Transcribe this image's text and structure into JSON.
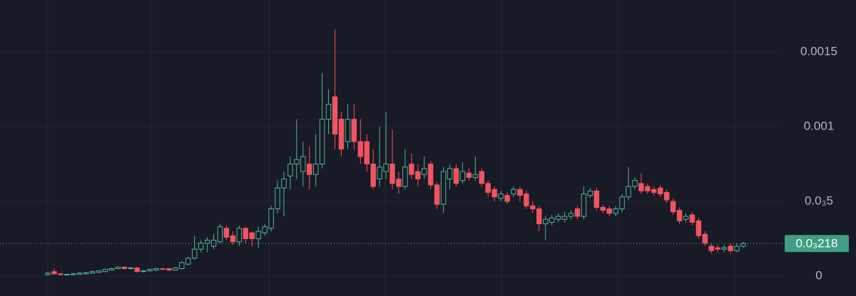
{
  "chart_data": {
    "type": "candlestick",
    "up_color": "#4fb79c",
    "down_color": "#ef5561",
    "grid": true,
    "ylim": [
      -0.0001333,
      0.001848
    ],
    "yticks": [
      0,
      {
        "value": 0.0005,
        "label": "0.0₃5"
      },
      0.001,
      0.0015
    ],
    "last_price_label": "0.0₃218",
    "open": [
      1e-05,
      3e-05,
      1.5e-05,
      1e-05,
      1e-05,
      1.2e-05,
      1.5e-05,
      2e-05,
      2.5e-05,
      3e-05,
      4e-05,
      5e-05,
      6e-05,
      5e-05,
      5.5e-05,
      3e-05,
      3.5e-05,
      4e-05,
      5e-05,
      5e-05,
      4e-05,
      5e-05,
      8e-05,
      0.00012,
      0.00018,
      0.00022,
      0.0002,
      0.00023,
      0.00032,
      0.00027,
      0.00023,
      0.00032,
      0.00029,
      0.00025,
      0.00029,
      0.00032,
      0.00045,
      0.00059,
      0.00067,
      0.00075,
      0.0007,
      0.00075,
      0.00068,
      0.00075,
      0.00105,
      0.0012,
      0.00105,
      0.0009,
      0.00105,
      0.0009,
      0.0009,
      0.00075,
      0.00065,
      0.0007,
      0.00075,
      0.00065,
      0.0006,
      0.00075,
      0.0007,
      0.00068,
      0.00075,
      0.00061,
      0.00048,
      0.00065,
      0.00072,
      0.00064,
      0.00069,
      0.00066,
      0.0007,
      0.00062,
      0.00058,
      0.00052,
      0.00054,
      0.00055,
      0.00058,
      0.00055,
      0.00047,
      0.00045,
      0.00035,
      0.00036,
      0.00038,
      0.00038,
      0.0004,
      0.00045,
      0.0004,
      0.00054,
      0.00057,
      0.00046,
      0.00045,
      0.00042,
      0.00045,
      0.00053,
      0.0006,
      0.00062,
      0.0006,
      0.00058,
      0.00059,
      0.00056,
      0.0005,
      0.00044,
      0.00038,
      0.00041,
      0.00037,
      0.00028,
      0.0002,
      0.00019,
      0.00018,
      0.0002,
      0.00017,
      0.0002
    ],
    "high": [
      3e-05,
      5e-05,
      2e-05,
      1.5e-05,
      2e-05,
      2.5e-05,
      2.8e-05,
      3.5e-05,
      4e-05,
      5e-05,
      5.5e-05,
      6.5e-05,
      6.5e-05,
      6e-05,
      6e-05,
      4e-05,
      5e-05,
      5.5e-05,
      5.5e-05,
      5.5e-05,
      6e-05,
      0.0001,
      0.00013,
      0.00027,
      0.00024,
      0.00026,
      0.00028,
      0.00035,
      0.00034,
      0.0003,
      0.00034,
      0.00033,
      0.0003,
      0.00033,
      0.00035,
      0.00047,
      0.00064,
      0.0007,
      0.0008,
      0.00105,
      0.0009,
      0.00087,
      0.00095,
      0.00136,
      0.00125,
      0.00165,
      0.0011,
      0.00115,
      0.00115,
      0.00105,
      0.00095,
      0.00085,
      0.001,
      0.0011,
      0.00098,
      0.0007,
      0.00085,
      0.00082,
      0.00075,
      0.0008,
      0.00077,
      0.00063,
      0.00073,
      0.00075,
      0.00075,
      0.00076,
      0.00072,
      0.0008,
      0.00072,
      0.00064,
      0.0006,
      0.00057,
      0.00056,
      0.0006,
      0.0006,
      0.00057,
      0.0005,
      0.00047,
      0.0004,
      0.00041,
      0.00042,
      0.00043,
      0.00044,
      0.00047,
      0.0006,
      0.00059,
      0.00059,
      0.00048,
      0.00047,
      0.00047,
      0.00055,
      0.00073,
      0.00066,
      0.00069,
      0.00062,
      0.0006,
      0.00061,
      0.00058,
      0.00052,
      0.00046,
      0.00042,
      0.00043,
      0.00039,
      0.0003,
      0.00022,
      0.00021,
      0.00021,
      0.00022,
      0.00022,
      0.00023
    ],
    "low": [
      5e-06,
      1e-05,
      5e-06,
      5e-06,
      8e-06,
      1e-05,
      1.2e-05,
      1.8e-05,
      2e-05,
      2.8e-05,
      3.8e-05,
      4.5e-05,
      4.5e-05,
      4.5e-05,
      2.5e-05,
      2.5e-05,
      3e-05,
      3.5e-05,
      4e-05,
      3.5e-05,
      3.5e-05,
      4.5e-05,
      7.5e-05,
      0.00011,
      0.00016,
      0.00016,
      0.00018,
      0.00022,
      0.00024,
      0.00021,
      0.0002,
      0.00022,
      0.0002,
      0.00019,
      0.00027,
      0.0003,
      0.00042,
      0.0004,
      0.00058,
      0.00065,
      0.0006,
      0.00058,
      0.0006,
      0.00072,
      0.00095,
      0.00085,
      0.0008,
      0.00085,
      0.00085,
      0.00075,
      0.0007,
      0.00058,
      0.0006,
      0.00065,
      0.00058,
      0.00055,
      0.00058,
      0.00065,
      0.0006,
      0.00065,
      0.00058,
      0.00045,
      0.00042,
      0.00058,
      0.0006,
      0.00062,
      0.00064,
      0.00064,
      0.0006,
      0.00053,
      0.0005,
      0.0005,
      0.00048,
      0.00053,
      0.0005,
      0.00045,
      0.00042,
      0.0003,
      0.00024,
      0.00034,
      0.00036,
      0.00036,
      0.00038,
      0.00038,
      0.00038,
      0.00052,
      0.00044,
      0.00042,
      0.0004,
      0.0004,
      0.00043,
      0.00051,
      0.00058,
      0.00055,
      0.00055,
      0.00054,
      0.00053,
      0.00049,
      0.00041,
      0.00035,
      0.00036,
      0.00034,
      0.00025,
      0.0002,
      0.00015,
      0.00016,
      0.00016,
      0.00015,
      0.00016,
      0.00019
    ],
    "close": [
      2e-05,
      1.5e-05,
      1e-05,
      1.2e-05,
      1.5e-05,
      2e-05,
      2.2e-05,
      3e-05,
      3.5e-05,
      4.5e-05,
      5e-05,
      6e-05,
      5e-05,
      5.5e-05,
      3e-05,
      3.5e-05,
      4.5e-05,
      5e-05,
      4.5e-05,
      4e-05,
      5.5e-05,
      9e-05,
      0.00012,
      0.00018,
      0.00022,
      0.00024,
      0.00024,
      0.00033,
      0.00026,
      0.00023,
      0.00032,
      0.00025,
      0.00025,
      0.0003,
      0.00033,
      0.00045,
      0.00059,
      0.00065,
      0.00075,
      0.00078,
      0.0008,
      0.00068,
      0.00075,
      0.00105,
      0.00115,
      0.00095,
      0.00085,
      0.00105,
      0.0009,
      0.0008,
      0.00075,
      0.0006,
      0.00073,
      0.00075,
      0.00062,
      0.0006,
      0.00073,
      0.00068,
      0.00065,
      0.00072,
      0.00061,
      0.00048,
      0.0007,
      0.00072,
      0.00062,
      0.0007,
      0.00066,
      0.00068,
      0.00062,
      0.00056,
      0.00053,
      0.00055,
      0.0005,
      0.00058,
      0.00054,
      0.00047,
      0.00045,
      0.00035,
      0.00038,
      0.00039,
      0.0004,
      0.0004,
      0.00042,
      0.0004,
      0.00055,
      0.00057,
      0.00046,
      0.00044,
      0.00042,
      0.00045,
      0.00053,
      0.0006,
      0.00064,
      0.00057,
      0.00057,
      0.00056,
      0.00055,
      0.00051,
      0.00043,
      0.00037,
      0.0004,
      0.00036,
      0.00027,
      0.00022,
      0.00017,
      0.00018,
      0.00019,
      0.00017,
      0.0002,
      0.000218
    ]
  }
}
